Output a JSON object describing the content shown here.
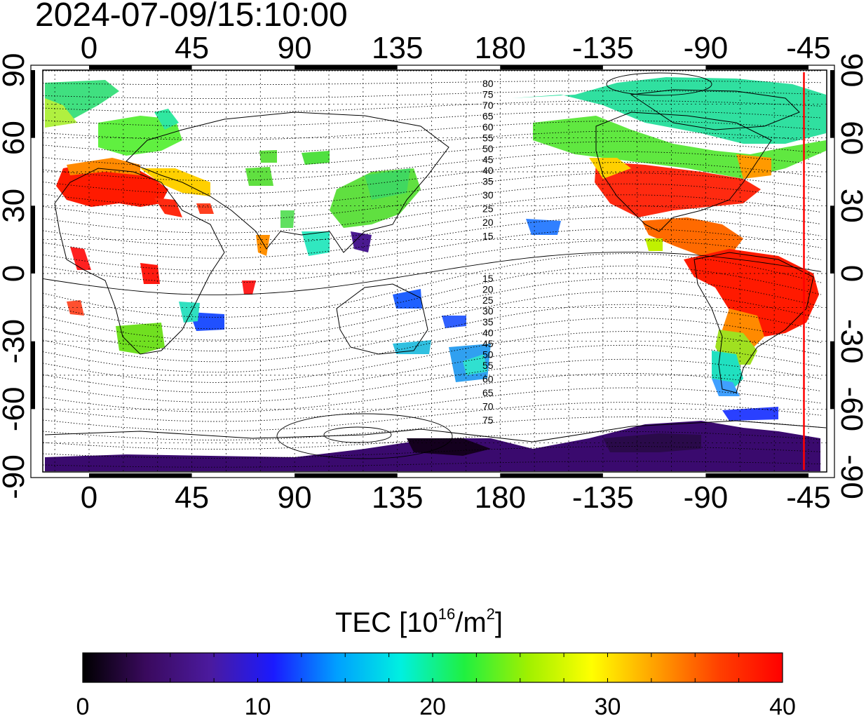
{
  "title": "2024-07-09/15:10:00",
  "map": {
    "x_tick_labels": [
      "0",
      "45",
      "90",
      "135",
      "180",
      "-135",
      "-90",
      "-45"
    ],
    "y_tick_labels": [
      "90",
      "60",
      "30",
      "0",
      "-30",
      "-60",
      "-90"
    ],
    "tick_values_lon": [
      0,
      45,
      90,
      135,
      180,
      225,
      270,
      315
    ],
    "tick_values_lat": [
      90,
      60,
      30,
      0,
      -30,
      -60,
      -90
    ],
    "contour_labels_north": [
      "80",
      "75",
      "70",
      "65",
      "60",
      "55",
      "50",
      "45",
      "40",
      "35",
      "30",
      "25",
      "20",
      "15"
    ],
    "contour_labels_south": [
      "15",
      "20",
      "25",
      "30",
      "35",
      "40",
      "45",
      "50",
      "55",
      "60",
      "65",
      "70",
      "75"
    ],
    "marker_longitude": -47,
    "marker_color": "#ff0000"
  },
  "colorbar": {
    "title_main": "TEC  [10",
    "title_exp1": "16",
    "title_mid": "/m",
    "title_exp2": "2",
    "title_end": "]",
    "tick_labels": [
      "0",
      "10",
      "20",
      "30",
      "40"
    ],
    "min": 0,
    "max": 40,
    "colors": [
      "#000000",
      "#3a0a5e",
      "#4b1a9e",
      "#1a1aff",
      "#00a0ff",
      "#00f0e0",
      "#20f040",
      "#a0f000",
      "#ffff00",
      "#ffa000",
      "#ff4000",
      "#ff0000"
    ]
  }
}
